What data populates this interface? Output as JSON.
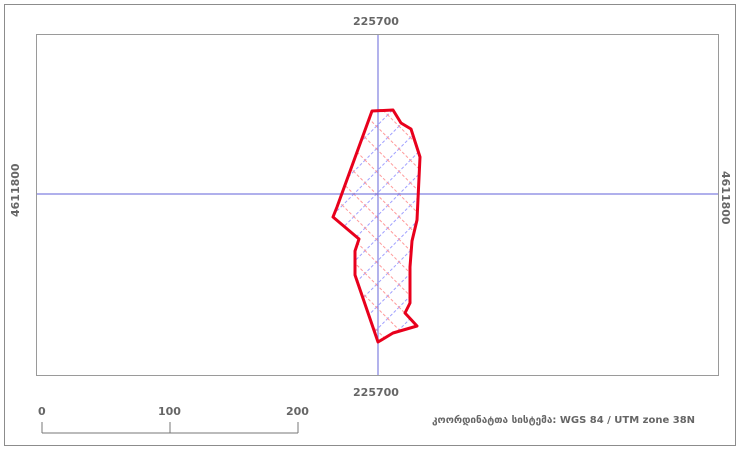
{
  "coordinates": {
    "easting_top": "225700",
    "easting_bottom": "225700",
    "northing_left": "4611800",
    "northing_right": "4611800"
  },
  "scale_bar": {
    "labels": [
      "0",
      "100",
      "200"
    ]
  },
  "crs_label": "კოორდინატთა სისტემა: WGS 84 / UTM zone 38N",
  "colors": {
    "polygon_outline": "#e8001c",
    "hatch_a": "#a0a0ff",
    "hatch_b": "#ff9a9a",
    "grid_line": "#8080e0"
  }
}
